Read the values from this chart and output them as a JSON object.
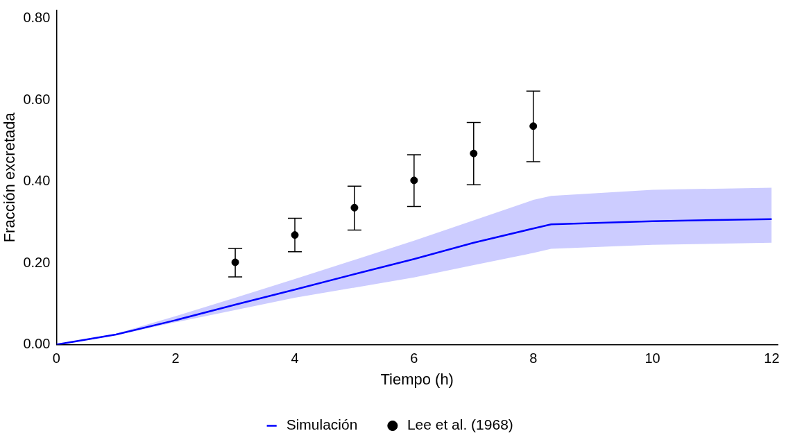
{
  "chart_data": {
    "type": "line",
    "xlabel": "Tiempo (h)",
    "ylabel": "Fracción excretada",
    "xlim": [
      0,
      12.1
    ],
    "xticks": [
      0,
      2,
      4,
      6,
      8,
      10,
      12
    ],
    "ylim": [
      0,
      0.82
    ],
    "yticks": [
      {
        "value": 0,
        "label": "0.00"
      },
      {
        "value": 0.2,
        "label": "0.20"
      },
      {
        "value": 0.4,
        "label": "0.40"
      },
      {
        "value": 0.6,
        "label": "0.60"
      },
      {
        "value": 0.8,
        "label": "0.80"
      }
    ],
    "grid": false,
    "legend": "bottom",
    "series": [
      {
        "name": "Simulación",
        "color": "#0000ff",
        "marker": "none",
        "x": [
          0,
          1,
          2,
          3,
          4,
          5,
          6,
          7,
          8,
          8.3,
          10,
          12
        ],
        "values": [
          0,
          0.025,
          0.06,
          0.098,
          0.135,
          0.173,
          0.21,
          0.25,
          0.285,
          0.295,
          0.303,
          0.308
        ],
        "lower": [
          0,
          0.023,
          0.055,
          0.085,
          0.115,
          0.14,
          0.165,
          0.195,
          0.225,
          0.235,
          0.245,
          0.25
        ],
        "upper": [
          0,
          0.027,
          0.07,
          0.115,
          0.161,
          0.208,
          0.255,
          0.305,
          0.355,
          0.365,
          0.38,
          0.385
        ]
      },
      {
        "name": "Lee et al. (1968)",
        "type": "scatter",
        "color": "#000000",
        "marker": "circle",
        "x": [
          3,
          4,
          5,
          6,
          7,
          8
        ],
        "values": [
          0.202,
          0.269,
          0.336,
          0.403,
          0.469,
          0.536
        ],
        "errors": [
          [
            0.166,
            0.236
          ],
          [
            0.228,
            0.31
          ],
          [
            0.281,
            0.389
          ],
          [
            0.339,
            0.466
          ],
          [
            0.392,
            0.545
          ],
          [
            0.449,
            0.622
          ]
        ]
      }
    ]
  }
}
